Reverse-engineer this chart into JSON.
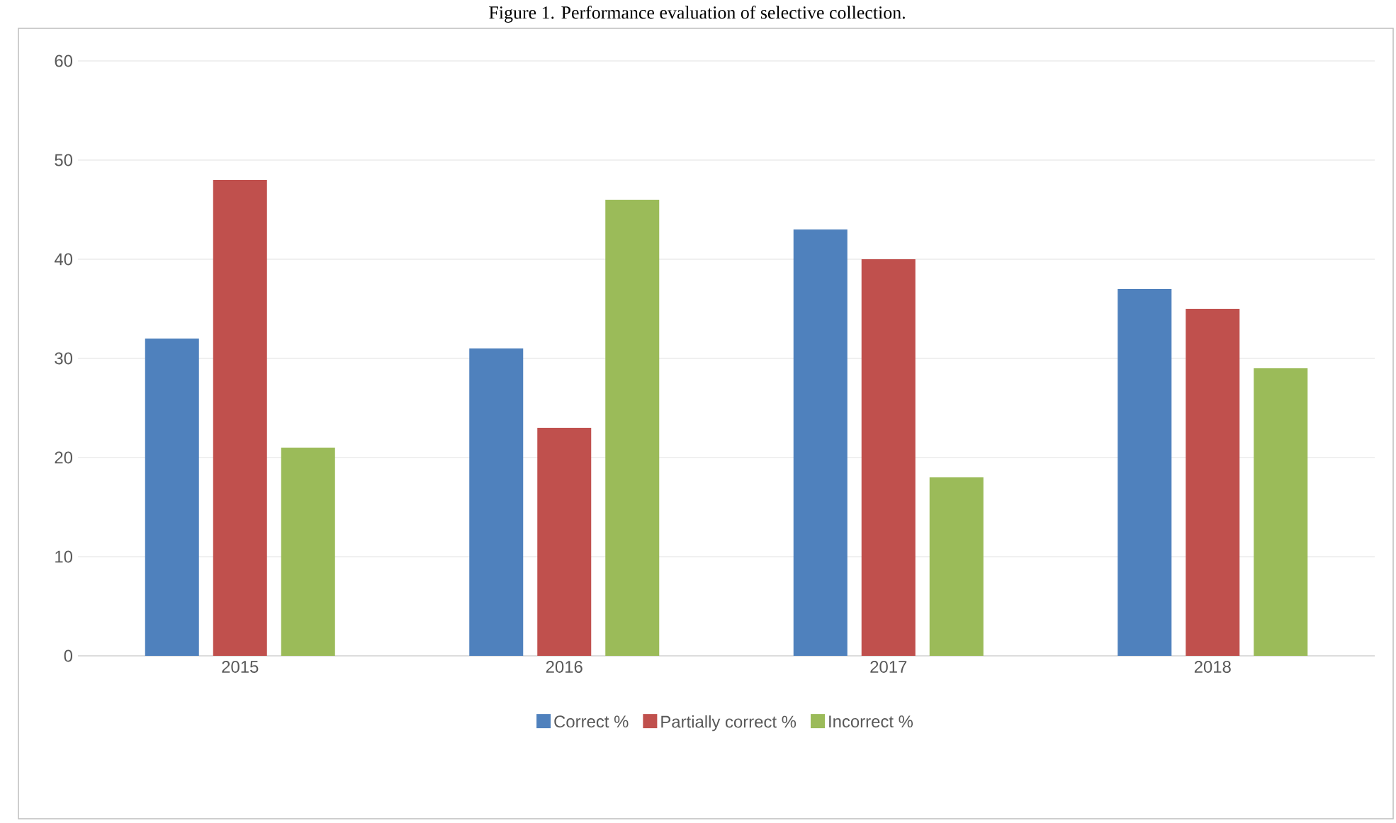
{
  "chart_data": {
    "type": "bar",
    "title": "Figure 1. Performance evaluation of selective collection.",
    "categories": [
      "2015",
      "2016",
      "2017",
      "2018"
    ],
    "series": [
      {
        "name": "Correct %",
        "color": "#4f81bd",
        "values": [
          32,
          31,
          43,
          37
        ]
      },
      {
        "name": "Partially correct %",
        "color": "#c0504d",
        "values": [
          48,
          23,
          40,
          35
        ]
      },
      {
        "name": "Incorrect %",
        "color": "#9bbb59",
        "values": [
          21,
          46,
          18,
          29
        ]
      }
    ],
    "ylim": [
      0,
      60
    ],
    "yticks": [
      0,
      10,
      20,
      30,
      40,
      50,
      60
    ],
    "grid": "y",
    "legend": "bottom"
  }
}
